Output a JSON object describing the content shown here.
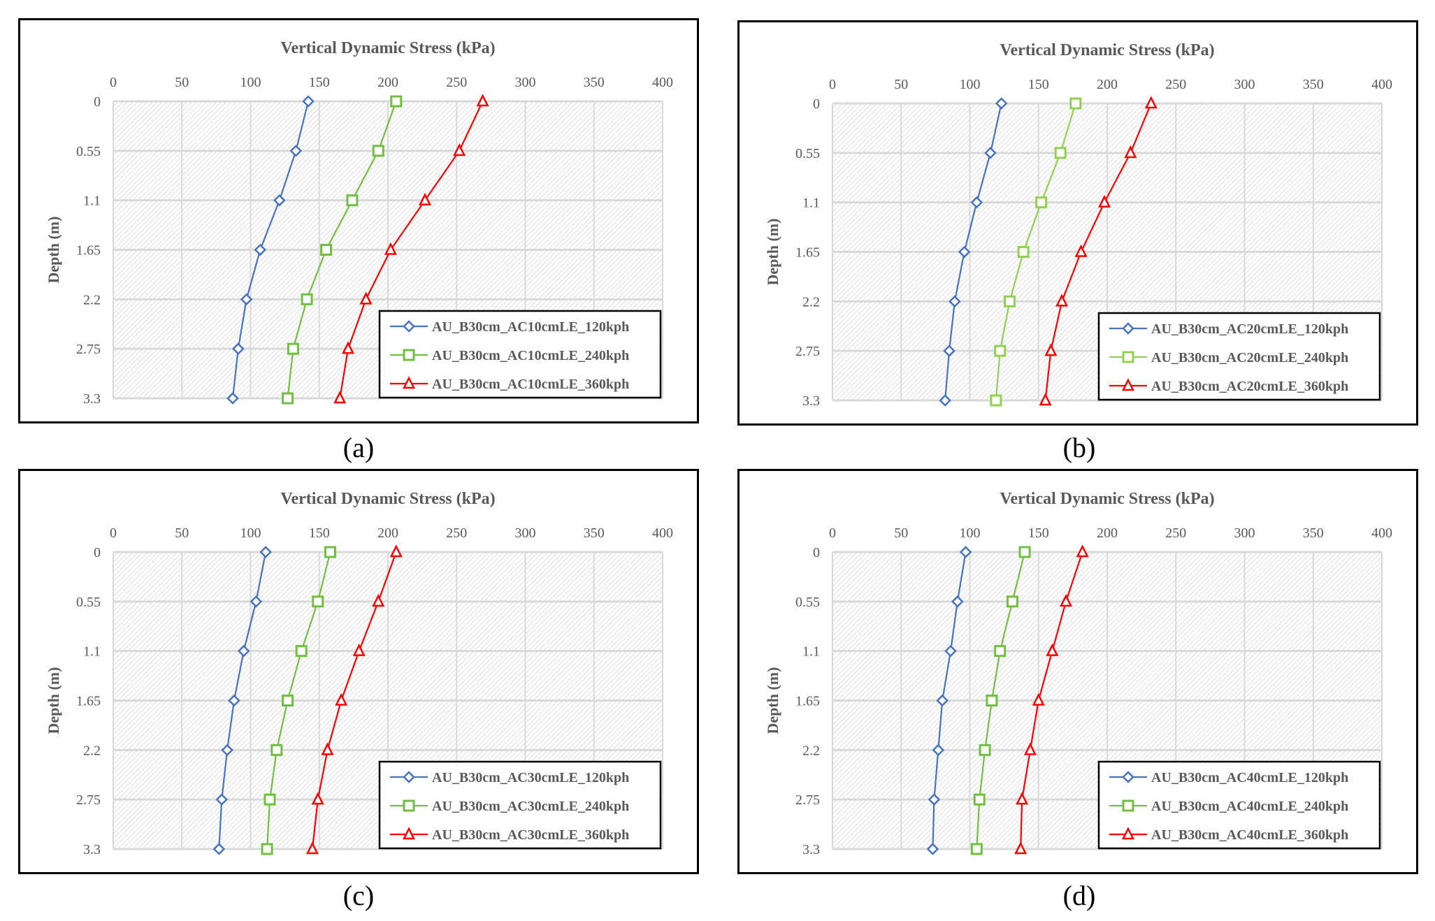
{
  "captions": [
    "(a)",
    "(b)",
    "(c)",
    "(d)"
  ],
  "chart_data": [
    {
      "type": "line",
      "title": "Vertical Dynamic Stress (kPa)",
      "xlabel": "Vertical Dynamic Stress (kPa)",
      "ylabel": "Depth (m)",
      "xlim": [
        0,
        400
      ],
      "x_ticks": [
        "0",
        "50",
        "100",
        "150",
        "200",
        "250",
        "300",
        "350",
        "400"
      ],
      "y_categories": [
        "0",
        "0.55",
        "1.1",
        "1.65",
        "2.2",
        "2.75",
        "3.3"
      ],
      "x_axis_position": "top",
      "y_inverted": true,
      "grid": true,
      "legend_position": "bottom-right",
      "series": [
        {
          "name": "AU_B30cm_AC10cmLE_120kph",
          "color": "#4472C4",
          "marker": "diamond",
          "values": [
            142,
            133,
            121,
            107,
            97,
            91,
            87
          ]
        },
        {
          "name": "AU_B30cm_AC10cmLE_240kph",
          "color": "#70C040",
          "marker": "square",
          "values": [
            206,
            193,
            174,
            155,
            141,
            131,
            127
          ]
        },
        {
          "name": "AU_B30cm_AC10cmLE_360kph",
          "color": "#FF0000",
          "marker": "triangle",
          "values": [
            269,
            252,
            227,
            202,
            184,
            171,
            165
          ]
        }
      ]
    },
    {
      "type": "line",
      "title": "Vertical Dynamic Stress (kPa)",
      "xlabel": "Vertical Dynamic Stress (kPa)",
      "ylabel": "Depth (m)",
      "xlim": [
        0,
        400
      ],
      "x_ticks": [
        "0",
        "50",
        "100",
        "150",
        "200",
        "250",
        "300",
        "350",
        "400"
      ],
      "y_categories": [
        "0",
        "0.55",
        "1.1",
        "1.65",
        "2.2",
        "2.75",
        "3.3"
      ],
      "x_axis_position": "top",
      "y_inverted": true,
      "grid": true,
      "legend_position": "bottom-right",
      "series": [
        {
          "name": "AU_B30cm_AC20cmLE_120kph",
          "color": "#4472C4",
          "marker": "diamond",
          "values": [
            123,
            115,
            105,
            96,
            89,
            85,
            82
          ]
        },
        {
          "name": "AU_B30cm_AC20cmLE_240kph",
          "color": "#92D050",
          "marker": "square",
          "values": [
            177,
            166,
            152,
            139,
            129,
            122,
            119
          ]
        },
        {
          "name": "AU_B30cm_AC20cmLE_360kph",
          "color": "#FF0000",
          "marker": "triangle",
          "values": [
            232,
            217,
            198,
            181,
            167,
            159,
            155
          ]
        }
      ]
    },
    {
      "type": "line",
      "title": "Vertical Dynamic Stress (kPa)",
      "xlabel": "Vertical Dynamic Stress (kPa)",
      "ylabel": "Depth (m)",
      "xlim": [
        0,
        400
      ],
      "x_ticks": [
        "0",
        "50",
        "100",
        "150",
        "200",
        "250",
        "300",
        "350",
        "400"
      ],
      "y_categories": [
        "0",
        "0.55",
        "1.1",
        "1.65",
        "2.2",
        "2.75",
        "3.3"
      ],
      "x_axis_position": "top",
      "y_inverted": true,
      "grid": true,
      "legend_position": "bottom-right",
      "series": [
        {
          "name": "AU_B30cm_AC30cmLE_120kph",
          "color": "#4472C4",
          "marker": "diamond",
          "values": [
            111,
            104,
            95,
            88,
            83,
            79,
            77
          ]
        },
        {
          "name": "AU_B30cm_AC30cmLE_240kph",
          "color": "#70C040",
          "marker": "square",
          "values": [
            158,
            149,
            137,
            127,
            119,
            114,
            112
          ]
        },
        {
          "name": "AU_B30cm_AC30cmLE_360kph",
          "color": "#FF0000",
          "marker": "triangle",
          "values": [
            206,
            193,
            179,
            166,
            156,
            149,
            145
          ]
        }
      ]
    },
    {
      "type": "line",
      "title": "Vertical Dynamic Stress (kPa)",
      "xlabel": "Vertical Dynamic Stress (kPa)",
      "ylabel": "Depth (m)",
      "xlim": [
        0,
        400
      ],
      "x_ticks": [
        "0",
        "50",
        "100",
        "150",
        "200",
        "250",
        "300",
        "350",
        "400"
      ],
      "y_categories": [
        "0",
        "0.55",
        "1.1",
        "1.65",
        "2.2",
        "2.75",
        "3.3"
      ],
      "x_axis_position": "top",
      "y_inverted": true,
      "grid": true,
      "legend_position": "bottom-right",
      "series": [
        {
          "name": "AU_B30cm_AC40cmLE_120kph",
          "color": "#4472C4",
          "marker": "diamond",
          "values": [
            97,
            91,
            86,
            80,
            77,
            74,
            73
          ]
        },
        {
          "name": "AU_B30cm_AC40cmLE_240kph",
          "color": "#70C040",
          "marker": "square",
          "values": [
            140,
            131,
            122,
            116,
            111,
            107,
            105
          ]
        },
        {
          "name": "AU_B30cm_AC40cmLE_360kph",
          "color": "#FF0000",
          "marker": "triangle",
          "values": [
            182,
            170,
            160,
            150,
            144,
            138,
            137
          ]
        }
      ]
    }
  ]
}
